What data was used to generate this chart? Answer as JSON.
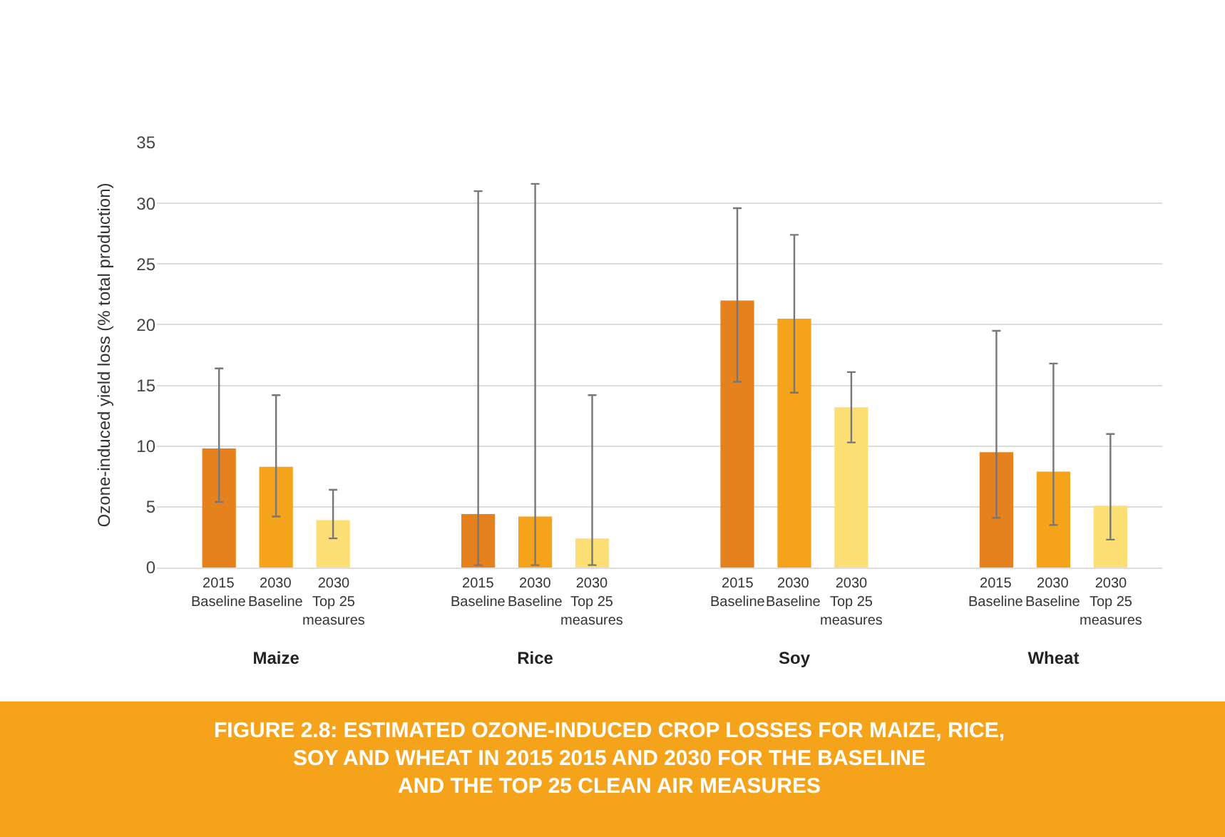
{
  "chart_data": {
    "type": "bar",
    "title": "FIGURE 2.8: ESTIMATED OZONE-INDUCED CROP LOSSES FOR MAIZE, RICE,\nSOY AND WHEAT IN 2015 2015 AND 2030 FOR THE BASELINE\nAND THE TOP 25 CLEAN AIR MEASURES",
    "ylabel": "Ozone-induced yield loss (% total production)",
    "categories": [
      "Maize",
      "Rice",
      "Soy",
      "Wheat"
    ],
    "series": [
      {
        "name": "2015\nBaseline",
        "color": "#e5821e",
        "values": [
          9.8,
          4.4,
          22.0,
          9.5
        ],
        "errors": [
          [
            5.4,
            16.4
          ],
          [
            0.2,
            31.0
          ],
          [
            15.3,
            29.6
          ],
          [
            4.1,
            19.5
          ]
        ]
      },
      {
        "name": "2030\nBaseline",
        "color": "#f5a31a",
        "values": [
          8.3,
          4.2,
          20.5,
          7.9
        ],
        "errors": [
          [
            4.2,
            14.2
          ],
          [
            0.2,
            31.6
          ],
          [
            14.4,
            27.4
          ],
          [
            3.5,
            16.8
          ]
        ]
      },
      {
        "name": "2030\nTop 25\nmeasures",
        "color": "#fcdf74",
        "values": [
          3.9,
          2.4,
          13.2,
          5.1
        ],
        "errors": [
          [
            2.4,
            6.4
          ],
          [
            0.2,
            14.2
          ],
          [
            10.3,
            16.1
          ],
          [
            2.3,
            11.0
          ]
        ]
      }
    ],
    "ylim": [
      0,
      35
    ],
    "yticks": [
      0,
      5,
      10,
      15,
      20,
      25,
      30,
      35
    ],
    "grid": "y"
  }
}
